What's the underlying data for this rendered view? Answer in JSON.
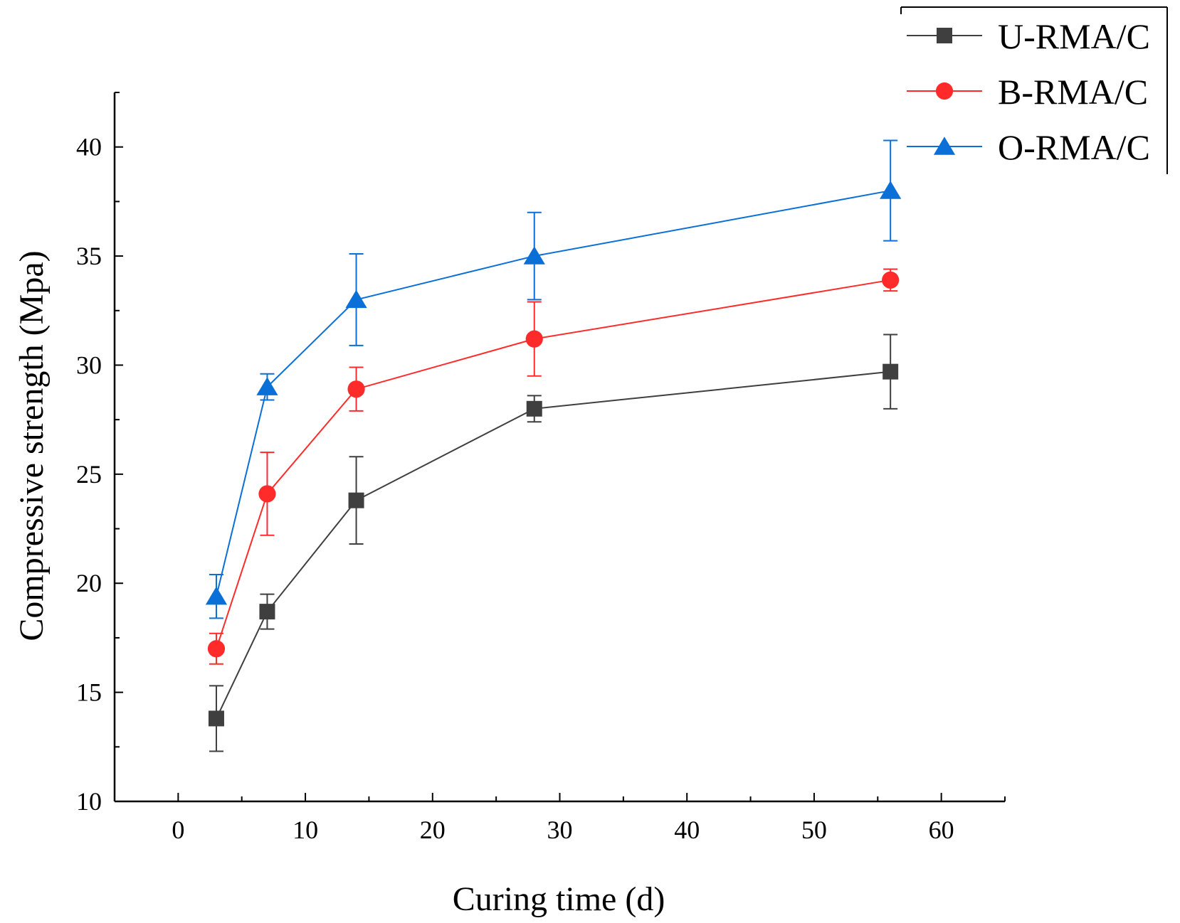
{
  "chart_data": {
    "type": "line",
    "title": "",
    "xlabel": "Curing time (d)",
    "ylabel": "Compressive strength (Mpa)",
    "xlim": [
      -5,
      65
    ],
    "ylim": [
      10,
      42.5
    ],
    "xticks": [
      0,
      10,
      20,
      30,
      40,
      50,
      60
    ],
    "yticks": [
      10,
      15,
      20,
      25,
      30,
      35,
      40
    ],
    "xtick_labels": [
      "0",
      "10",
      "20",
      "30",
      "40",
      "50",
      "60"
    ],
    "ytick_labels": [
      "10",
      "15",
      "20",
      "25",
      "30",
      "35",
      "40"
    ],
    "grid": false,
    "legend_position": "top-right",
    "x": [
      3,
      7,
      14,
      28,
      56
    ],
    "series": [
      {
        "name": "U-RMA/C",
        "marker": "square",
        "color": "#3f3f3f",
        "values": [
          13.8,
          18.7,
          23.8,
          28.0,
          29.7
        ],
        "errors": [
          1.5,
          0.8,
          2.0,
          0.6,
          1.7
        ]
      },
      {
        "name": "B-RMA/C",
        "marker": "circle",
        "color": "#ff2b2b",
        "values": [
          17.0,
          24.1,
          28.9,
          31.2,
          33.9
        ],
        "errors": [
          0.7,
          1.9,
          1.0,
          1.7,
          0.5
        ]
      },
      {
        "name": "O-RMA/C",
        "marker": "triangle",
        "color": "#0a6fd6",
        "values": [
          19.4,
          29.0,
          33.0,
          35.0,
          38.0
        ],
        "errors": [
          1.0,
          0.6,
          2.1,
          2.0,
          2.3
        ]
      }
    ]
  }
}
